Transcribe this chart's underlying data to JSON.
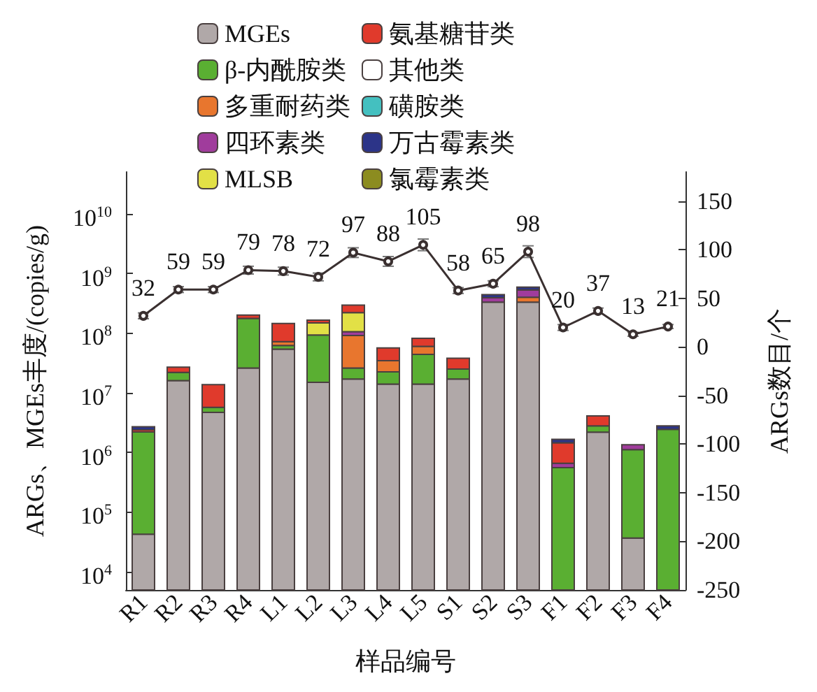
{
  "chart_data": {
    "type": "bar",
    "stacked": true,
    "log": "y",
    "xlabel": "样品编号",
    "ylabel": "ARGs、MGEs丰度/(copies/g)",
    "y2label": "ARGs数目/个",
    "categories": [
      "R1",
      "R2",
      "R3",
      "R4",
      "L1",
      "L2",
      "L3",
      "L4",
      "L5",
      "S1",
      "S2",
      "S3",
      "F1",
      "F2",
      "F3",
      "F4"
    ],
    "ylim": [
      5000,
      50000000000
    ],
    "yticks": [
      {
        "value": 10000,
        "label": "10$^{4}$"
      },
      {
        "value": 100000,
        "label": "10$^{5}$"
      },
      {
        "value": 1000000,
        "label": "10$^{6}$"
      },
      {
        "value": 10000000,
        "label": "10$^{7}$"
      },
      {
        "value": 100000000,
        "label": "10$^{8}$"
      },
      {
        "value": 1000000000,
        "label": "10$^{9}$"
      },
      {
        "value": 10000000000,
        "label": "10$^{10}$"
      }
    ],
    "y2lim": [
      -250,
      180
    ],
    "y2ticks": [
      -250,
      -200,
      -150,
      -100,
      -50,
      0,
      50,
      100,
      150
    ],
    "legend": "top left",
    "series": [
      {
        "name": "MGEs",
        "color": "#b0a8a8",
        "values": [
          43000,
          16000000,
          4700000,
          26000000,
          54000000,
          15000000,
          17000000,
          14000000,
          14000000,
          17000000,
          330000000,
          330000000,
          null,
          2200000,
          37000,
          null
        ]
      },
      {
        "name": "β-内酰胺类",
        "color": "#5aaf32",
        "values": [
          2160000,
          6000000,
          1000000,
          150000000,
          8000000,
          78000000,
          9000000,
          8500000,
          30000000,
          8000000,
          null,
          null,
          560000,
          600000,
          1080000,
          2450000
        ]
      },
      {
        "name": "多重耐药类",
        "color": "#e8762e",
        "values": [
          null,
          null,
          null,
          null,
          10000000,
          null,
          65000000,
          12000000,
          16000000,
          null,
          null,
          70000000,
          null,
          null,
          null,
          null
        ]
      },
      {
        "name": "四环素类",
        "color": "#a03c9c",
        "values": [
          null,
          null,
          null,
          null,
          null,
          null,
          15000000,
          null,
          null,
          null,
          60000000,
          130000000,
          100000,
          null,
          230000,
          null
        ]
      },
      {
        "name": "MLSB",
        "color": "#e2e046",
        "values": [
          null,
          null,
          null,
          null,
          null,
          55000000,
          115000000,
          null,
          null,
          null,
          null,
          null,
          null,
          null,
          null,
          null
        ]
      },
      {
        "name": "氨基糖苷类",
        "color": "#e03a2c",
        "values": [
          200000,
          5000000,
          8000000,
          25000000,
          73000000,
          17000000,
          74000000,
          22000000,
          22000000,
          13000000,
          null,
          null,
          800000,
          1300000,
          null,
          null
        ]
      },
      {
        "name": "其他类",
        "color": "#ffffff",
        "values": [
          null,
          null,
          null,
          null,
          null,
          null,
          null,
          null,
          null,
          null,
          null,
          null,
          null,
          null,
          null,
          null
        ]
      },
      {
        "name": "磺胺类",
        "color": "#44c0c0",
        "values": [
          null,
          null,
          null,
          null,
          null,
          null,
          null,
          null,
          null,
          null,
          null,
          null,
          null,
          null,
          null,
          null
        ]
      },
      {
        "name": "万古霉素类",
        "color": "#2c3488",
        "values": [
          300000,
          null,
          null,
          null,
          null,
          null,
          null,
          null,
          null,
          null,
          50000000,
          60000000,
          200000,
          null,
          null,
          350000
        ]
      },
      {
        "name": "氯霉素类",
        "color": "#8c8c20",
        "values": [
          null,
          null,
          null,
          null,
          null,
          null,
          null,
          null,
          null,
          null,
          null,
          null,
          null,
          null,
          null,
          null
        ]
      },
      {
        "type": "line",
        "axis": "y2",
        "color": "#3a3030",
        "marker": "circle",
        "data_labels": true,
        "values": [
          32,
          59,
          59,
          79,
          78,
          72,
          97,
          88,
          105,
          58,
          65,
          98,
          20,
          37,
          13,
          21
        ],
        "errors": [
          3,
          3,
          3,
          4,
          4,
          4,
          5,
          5,
          6,
          3,
          3,
          6,
          3,
          3,
          2,
          2
        ]
      }
    ]
  }
}
